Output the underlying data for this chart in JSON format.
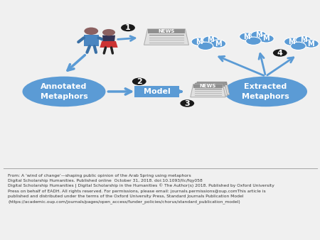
{
  "bg_color": "#f0f0f0",
  "diagram_bg": "#ffffff",
  "blue": "#5b9bd5",
  "dark": "#1a1a1a",
  "arrow_color": "#5b9bd5",
  "annotated_label": "Annotated\nMetaphors",
  "model_label": "Model",
  "extracted_label": "Extracted\nMetaphors",
  "caption_line1": "From: A ‘wind of change’—shaping public opinion of the Arab Spring using metaphors",
  "caption_line2": "Digital Scholarship Humanities. Published online  October 31, 2018. doi:10.1093/llc/fqy058",
  "caption_line3": "Digital Scholarship Humanities | Digital Scholarship in the Humanities © The Author(s) 2018. Published by Oxford University",
  "caption_line4": "Press on behalf of EADH. All rights reserved. For permissions, please email: journals.permissions@oup.comThis article is",
  "caption_line5": "published and distributed under the terms of the Oxford University Press, Standard Journals Publication Model",
  "caption_line6": "(https://academic.oup.com/journals/pages/open_access/funder_policies/chorus/standard_publication_model)"
}
